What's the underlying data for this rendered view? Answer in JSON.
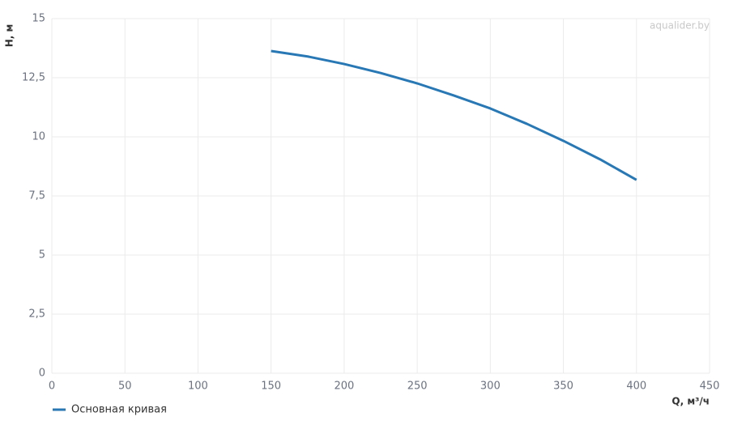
{
  "chart_data": {
    "type": "line",
    "watermark": "aqualider.by",
    "x_label": "Q, м³/ч",
    "y_label": "H, м",
    "x": [
      150,
      175,
      200,
      225,
      250,
      275,
      300,
      325,
      350,
      375,
      400
    ],
    "series": [
      {
        "name": "Основная кривая",
        "color": "#2878b5",
        "values": [
          13.63,
          13.4,
          13.08,
          12.7,
          12.26,
          11.75,
          11.2,
          10.55,
          9.83,
          9.05,
          8.18
        ]
      }
    ],
    "xlim": [
      0,
      450
    ],
    "ylim": [
      0,
      15
    ],
    "xticks": [
      0,
      50,
      100,
      150,
      200,
      250,
      300,
      350,
      400,
      450
    ],
    "yticks": [
      0,
      {
        "value": 2.5,
        "label": "2,5"
      },
      5,
      {
        "value": 7.5,
        "label": "7,5"
      },
      10,
      {
        "value": 12.5,
        "label": "12,5"
      },
      15
    ],
    "grid": true
  }
}
